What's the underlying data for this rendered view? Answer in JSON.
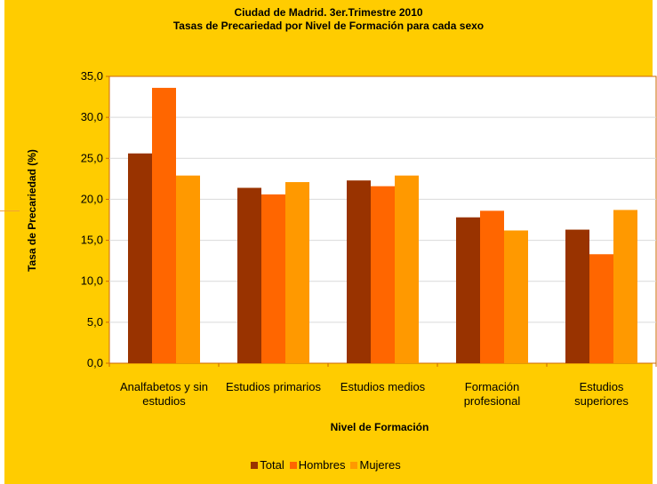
{
  "chart_data": {
    "type": "bar",
    "title": "Ciudad de Madrid. 3er.Trimestre 2010",
    "subtitle": "Tasas de Precariedad por Nivel de Formación para cada sexo",
    "xlabel": "Nivel de Formación",
    "ylabel": "Tasa de Precariedad (%)",
    "ylim": [
      0,
      35
    ],
    "yticks": [
      "0,0",
      "5,0",
      "10,0",
      "15,0",
      "20,0",
      "25,0",
      "30,0",
      "35,0"
    ],
    "grid": true,
    "legend_position": "bottom",
    "categories": [
      [
        "Analfabetos y sin",
        "estudios"
      ],
      [
        "Estudios primarios"
      ],
      [
        "Estudios medios"
      ],
      [
        "Formación",
        "profesional"
      ],
      [
        "Estudios",
        "superiores"
      ]
    ],
    "series": [
      {
        "name": "Total",
        "color": "#993300",
        "values": [
          25.6,
          21.4,
          22.3,
          17.8,
          16.3
        ]
      },
      {
        "name": "Hombres",
        "color": "#FF6600",
        "values": [
          33.6,
          20.6,
          21.6,
          18.6,
          13.3
        ]
      },
      {
        "name": "Mujeres",
        "color": "#FF9900",
        "values": [
          22.9,
          22.1,
          22.9,
          16.2,
          18.7
        ]
      }
    ]
  }
}
